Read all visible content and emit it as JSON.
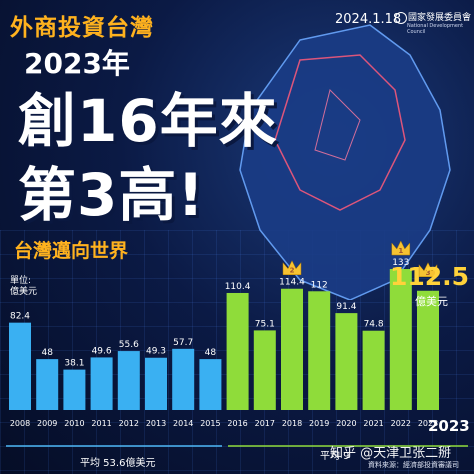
{
  "header": {
    "title_small": "外商投資台灣",
    "title_year": "2023年",
    "headline_1": "創16年來",
    "headline_2": "第3高!",
    "subtitle": "台灣邁向世界",
    "date": "2024.1.18",
    "agency": "國家發展委員會",
    "agency_en": "National Development Council"
  },
  "unit_label_1": "單位:",
  "unit_label_2": "億美元",
  "highlight": {
    "value": "112.5",
    "unit": "億美元",
    "year": "2023"
  },
  "averages": {
    "first": "平均 53.6億美元",
    "second": "平均 9"
  },
  "watermark": "知乎 @天津卫张二掰",
  "source": "資料來源：經濟部投資審議司",
  "colors": {
    "blue_bar": "#3ab0f2",
    "green_bar": "#8fdc3a",
    "gold": "#ffb21e",
    "background": "#0b1a45"
  },
  "chart_data": {
    "type": "bar",
    "categories": [
      "2008",
      "2009",
      "2010",
      "2011",
      "2012",
      "2013",
      "2014",
      "2015",
      "2016",
      "2017",
      "2018",
      "2019",
      "2020",
      "2021",
      "2022",
      "2023"
    ],
    "values": [
      82.4,
      48,
      38.1,
      49.6,
      55.6,
      49.3,
      57.7,
      48,
      110.4,
      75.1,
      114.4,
      112,
      91.4,
      74.8,
      133,
      112.5
    ],
    "labels": [
      "82.4",
      "48",
      "38.1",
      "49.6",
      "55.6",
      "49.3",
      "57.7",
      "48",
      "110.4",
      "75.1",
      "114.4",
      "112",
      "91.4",
      "74.8",
      "133",
      ""
    ],
    "ranks": {
      "2018": "2",
      "2022": "1",
      "2023": "3"
    },
    "ylabel": "億美元"
  }
}
